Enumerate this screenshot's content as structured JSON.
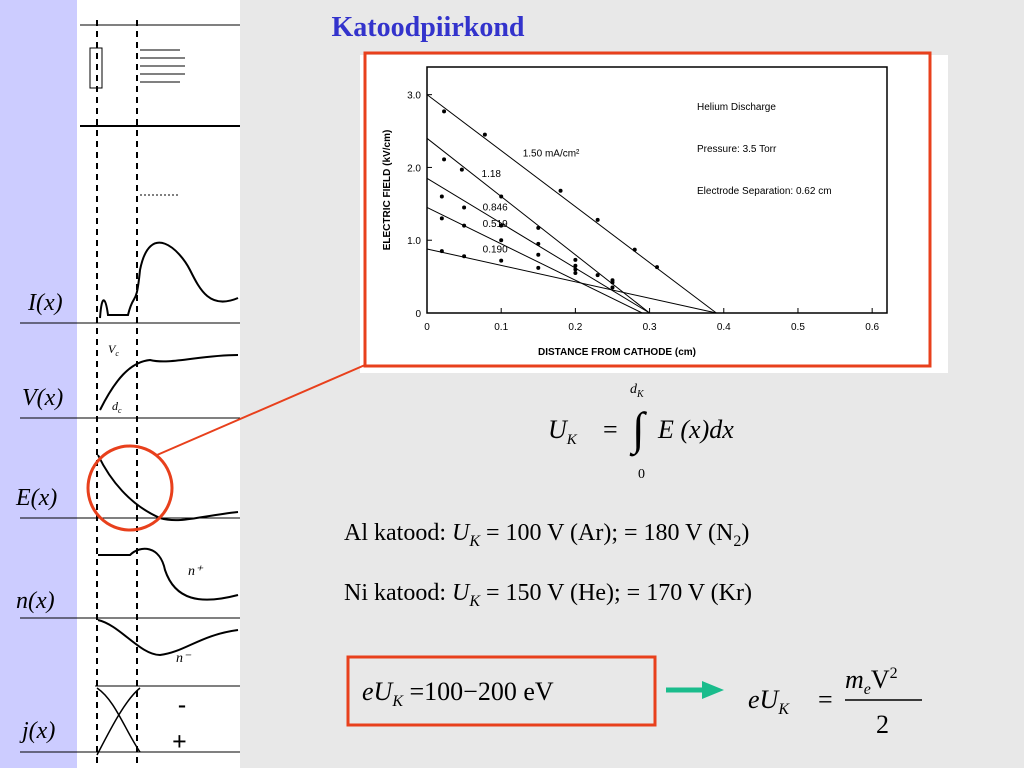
{
  "title": "Katoodpiirkond",
  "left": {
    "labels": [
      "I(x)",
      "V(x)",
      "E(x)",
      "n(x)",
      "j(x)"
    ],
    "vc": "V",
    "vc_sub": "c",
    "dc": "d",
    "dc_sub": "c",
    "n_plus": "n⁺",
    "n_minus": "n⁻",
    "minus": "-",
    "plus": "+"
  },
  "chart_data": {
    "type": "scatter",
    "xlabel": "DISTANCE FROM CATHODE (cm)",
    "ylabel": "ELECTRIC FIELD (kV/cm)",
    "annotations": [
      "Helium Discharge",
      "Pressure: 3.5 Torr",
      "Electrode Separation: 0.62 cm"
    ],
    "xlim": [
      0,
      0.62
    ],
    "ylim": [
      0,
      3.38
    ],
    "xticks": [
      0,
      0.1,
      0.2,
      0.3,
      0.4,
      0.5,
      0.6
    ],
    "yticks": [
      0,
      {
        "value": 1,
        "label": "1.0"
      },
      {
        "value": 2,
        "label": "2.0"
      },
      {
        "value": 3,
        "label": "3.0"
      }
    ],
    "color": "#000000",
    "series": [
      {
        "name": "1.50 mA/cm²",
        "x": [
          0.023,
          0.078,
          0.18,
          0.23,
          0.28,
          0.31
        ],
        "values": [
          2.77,
          2.45,
          1.68,
          1.28,
          0.87,
          0.63
        ],
        "line_x": [
          0,
          0.39
        ],
        "line_y": [
          3.0,
          0
        ]
      },
      {
        "name": "1.18",
        "x": [
          0.023,
          0.047,
          0.1,
          0.15,
          0.2,
          0.23
        ],
        "values": [
          2.11,
          1.97,
          1.6,
          1.17,
          0.73,
          0.52
        ],
        "line_x": [
          0,
          0.3
        ],
        "line_y": [
          2.4,
          0
        ]
      },
      {
        "name": "0.846",
        "x": [
          0.02,
          0.05,
          0.1,
          0.15,
          0.2,
          0.25
        ],
        "values": [
          1.6,
          1.45,
          1.2,
          0.95,
          0.65,
          0.42
        ],
        "line_x": [
          0,
          0.3
        ],
        "line_y": [
          1.85,
          0
        ]
      },
      {
        "name": "0.519",
        "x": [
          0.02,
          0.05,
          0.1,
          0.15,
          0.2,
          0.25
        ],
        "values": [
          1.3,
          1.2,
          1.0,
          0.8,
          0.6,
          0.35
        ],
        "line_x": [
          0,
          0.29
        ],
        "line_y": [
          1.45,
          0
        ]
      },
      {
        "name": "0.190",
        "x": [
          0.02,
          0.05,
          0.1,
          0.15,
          0.2,
          0.25
        ],
        "values": [
          0.85,
          0.78,
          0.72,
          0.62,
          0.55,
          0.45
        ],
        "line_x": [
          0,
          0.39
        ],
        "line_y": [
          0.88,
          0
        ]
      }
    ]
  },
  "integral": {
    "lhs": "U",
    "lhs_sub": "K",
    "eq": "=",
    "upper": "d",
    "upper_sub": "K",
    "lower": "0",
    "body": "E (x)dx"
  },
  "lines": [
    {
      "pre": "Al katood: ",
      "u": "U",
      "sub": "K",
      "post": " = 100 V (Ar); = 180 V (N",
      "sub2": "2",
      "end": ")"
    },
    {
      "pre": "Ni katood: ",
      "u": "U",
      "sub": "K",
      "post": " = 150 V (He); = 170 V (Kr)"
    }
  ],
  "boxed": {
    "e": "eU",
    "sub": "K",
    "rest": " =100−200  eV"
  },
  "energy": {
    "lhs": "eU",
    "sub": "K",
    "eq": "=",
    "num": "m",
    "num_sub": "e",
    "num_v": "V",
    "num_sup": "2",
    "den": "2"
  }
}
